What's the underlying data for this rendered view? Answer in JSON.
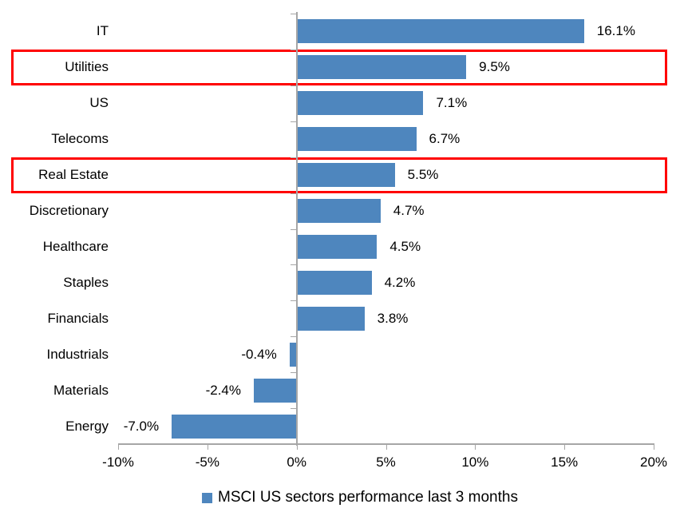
{
  "chart_data": {
    "type": "bar",
    "orientation": "horizontal",
    "title": "",
    "categories": [
      "IT",
      "Utilities",
      "US",
      "Telecoms",
      "Real Estate",
      "Discretionary",
      "Healthcare",
      "Staples",
      "Financials",
      "Industrials",
      "Materials",
      "Energy"
    ],
    "values": [
      16.1,
      9.5,
      7.1,
      6.7,
      5.5,
      4.7,
      4.5,
      4.2,
      3.8,
      -0.4,
      -2.4,
      -7.0
    ],
    "value_labels": [
      "16.1%",
      "9.5%",
      "7.1%",
      "6.7%",
      "5.5%",
      "4.7%",
      "4.5%",
      "4.2%",
      "3.8%",
      "-0.4%",
      "-2.4%",
      "-7.0%"
    ],
    "highlighted_categories": [
      "Utilities",
      "Real Estate"
    ],
    "x_ticks": [
      {
        "value": -10,
        "label": "-10%"
      },
      {
        "value": -5,
        "label": "-5%"
      },
      {
        "value": 0,
        "label": "0%"
      },
      {
        "value": 5,
        "label": "5%"
      },
      {
        "value": 10,
        "label": "10%"
      },
      {
        "value": 15,
        "label": "15%"
      },
      {
        "value": 20,
        "label": "20%"
      }
    ],
    "xlim": [
      -10,
      20
    ],
    "grid": false,
    "legend_position": "bottom",
    "legend": {
      "label": "MSCI US sectors performance last 3 months",
      "marker_color": "#4E86BE"
    },
    "colors": {
      "bar": "#4E86BE",
      "highlight_border": "#FF0000",
      "axis": "#A6A6A6",
      "text": "#000000"
    }
  }
}
